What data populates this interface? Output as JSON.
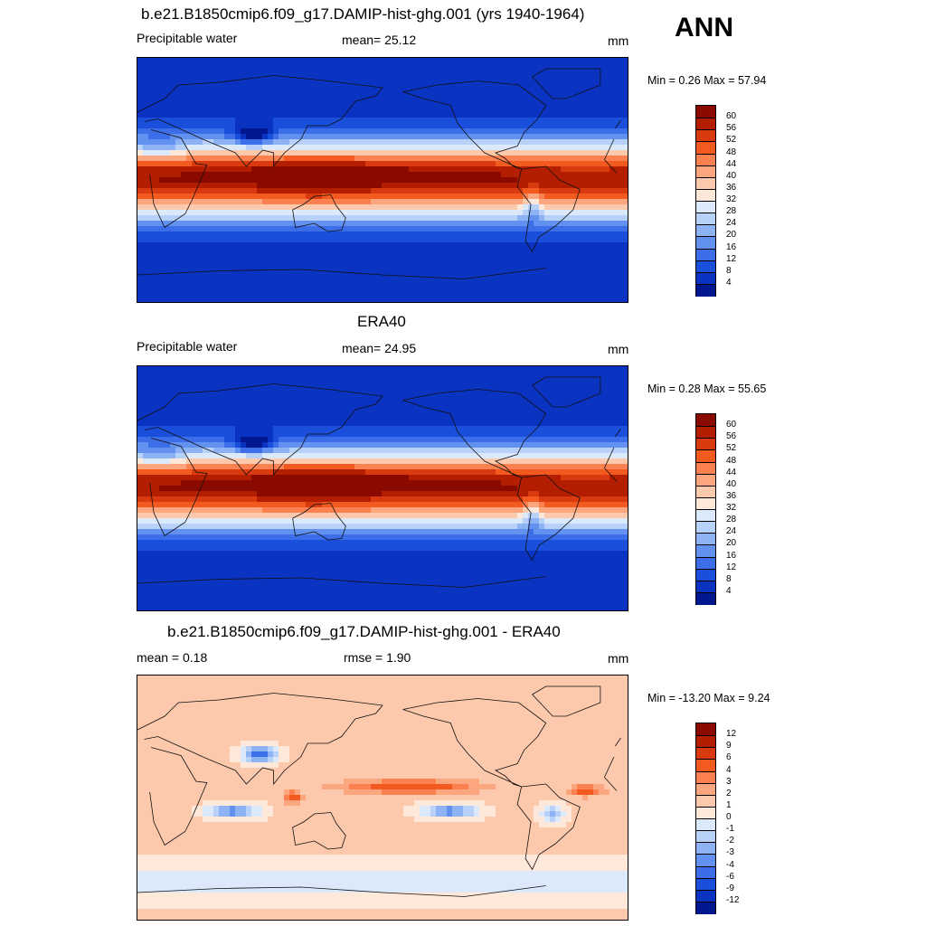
{
  "season": "ANN",
  "panels": [
    {
      "id": "model",
      "title": "b.e21.B1850cmip6.f09_g17.DAMIP-hist-ghg.001 (yrs 1940-1964)",
      "left_label": "Precipitable water",
      "center_label": "mean=  25.12",
      "units": "mm",
      "minmax": "Min =   0.26 Max =  57.94",
      "kind": "field",
      "colorbar_labels": [
        "60",
        "56",
        "52",
        "48",
        "44",
        "40",
        "36",
        "32",
        "28",
        "24",
        "20",
        "16",
        "12",
        "8",
        "4"
      ],
      "colors": [
        "#8b0a00",
        "#b31e00",
        "#d93a0f",
        "#f25a1f",
        "#fb8250",
        "#fba67e",
        "#fcc9ad",
        "#fde8d9",
        "#dbe9fb",
        "#b7d1f8",
        "#8db3f4",
        "#6391f0",
        "#3b6ee8",
        "#1a4fdc",
        "#0a33c2",
        "#00178f"
      ]
    },
    {
      "id": "obs",
      "title": "ERA40",
      "left_label": "Precipitable water",
      "center_label": "mean=  24.95",
      "units": "mm",
      "minmax": "Min =   0.28 Max =  55.65",
      "kind": "field",
      "colorbar_labels": [
        "60",
        "56",
        "52",
        "48",
        "44",
        "40",
        "36",
        "32",
        "28",
        "24",
        "20",
        "16",
        "12",
        "8",
        "4"
      ],
      "colors": [
        "#8b0a00",
        "#b31e00",
        "#d93a0f",
        "#f25a1f",
        "#fb8250",
        "#fba67e",
        "#fcc9ad",
        "#fde8d9",
        "#dbe9fb",
        "#b7d1f8",
        "#8db3f4",
        "#6391f0",
        "#3b6ee8",
        "#1a4fdc",
        "#0a33c2",
        "#00178f"
      ]
    },
    {
      "id": "diff",
      "title": "b.e21.B1850cmip6.f09_g17.DAMIP-hist-ghg.001 - ERA40",
      "left_label": "mean =   0.18",
      "center_label": "rmse =   1.90",
      "units": "mm",
      "minmax": "Min = -13.20 Max =   9.24",
      "kind": "diff",
      "colorbar_labels": [
        "12",
        "9",
        "6",
        "4",
        "3",
        "2",
        "1",
        "0",
        "-1",
        "-2",
        "-3",
        "-4",
        "-6",
        "-9",
        "-12"
      ],
      "colors": [
        "#8b0a00",
        "#b31e00",
        "#d93a0f",
        "#f25a1f",
        "#fb8250",
        "#fba67e",
        "#fcc9ad",
        "#fde8d9",
        "#dbe9fb",
        "#b7d1f8",
        "#8db3f4",
        "#6391f0",
        "#3b6ee8",
        "#1a4fdc",
        "#0a33c2",
        "#00178f"
      ]
    }
  ]
}
